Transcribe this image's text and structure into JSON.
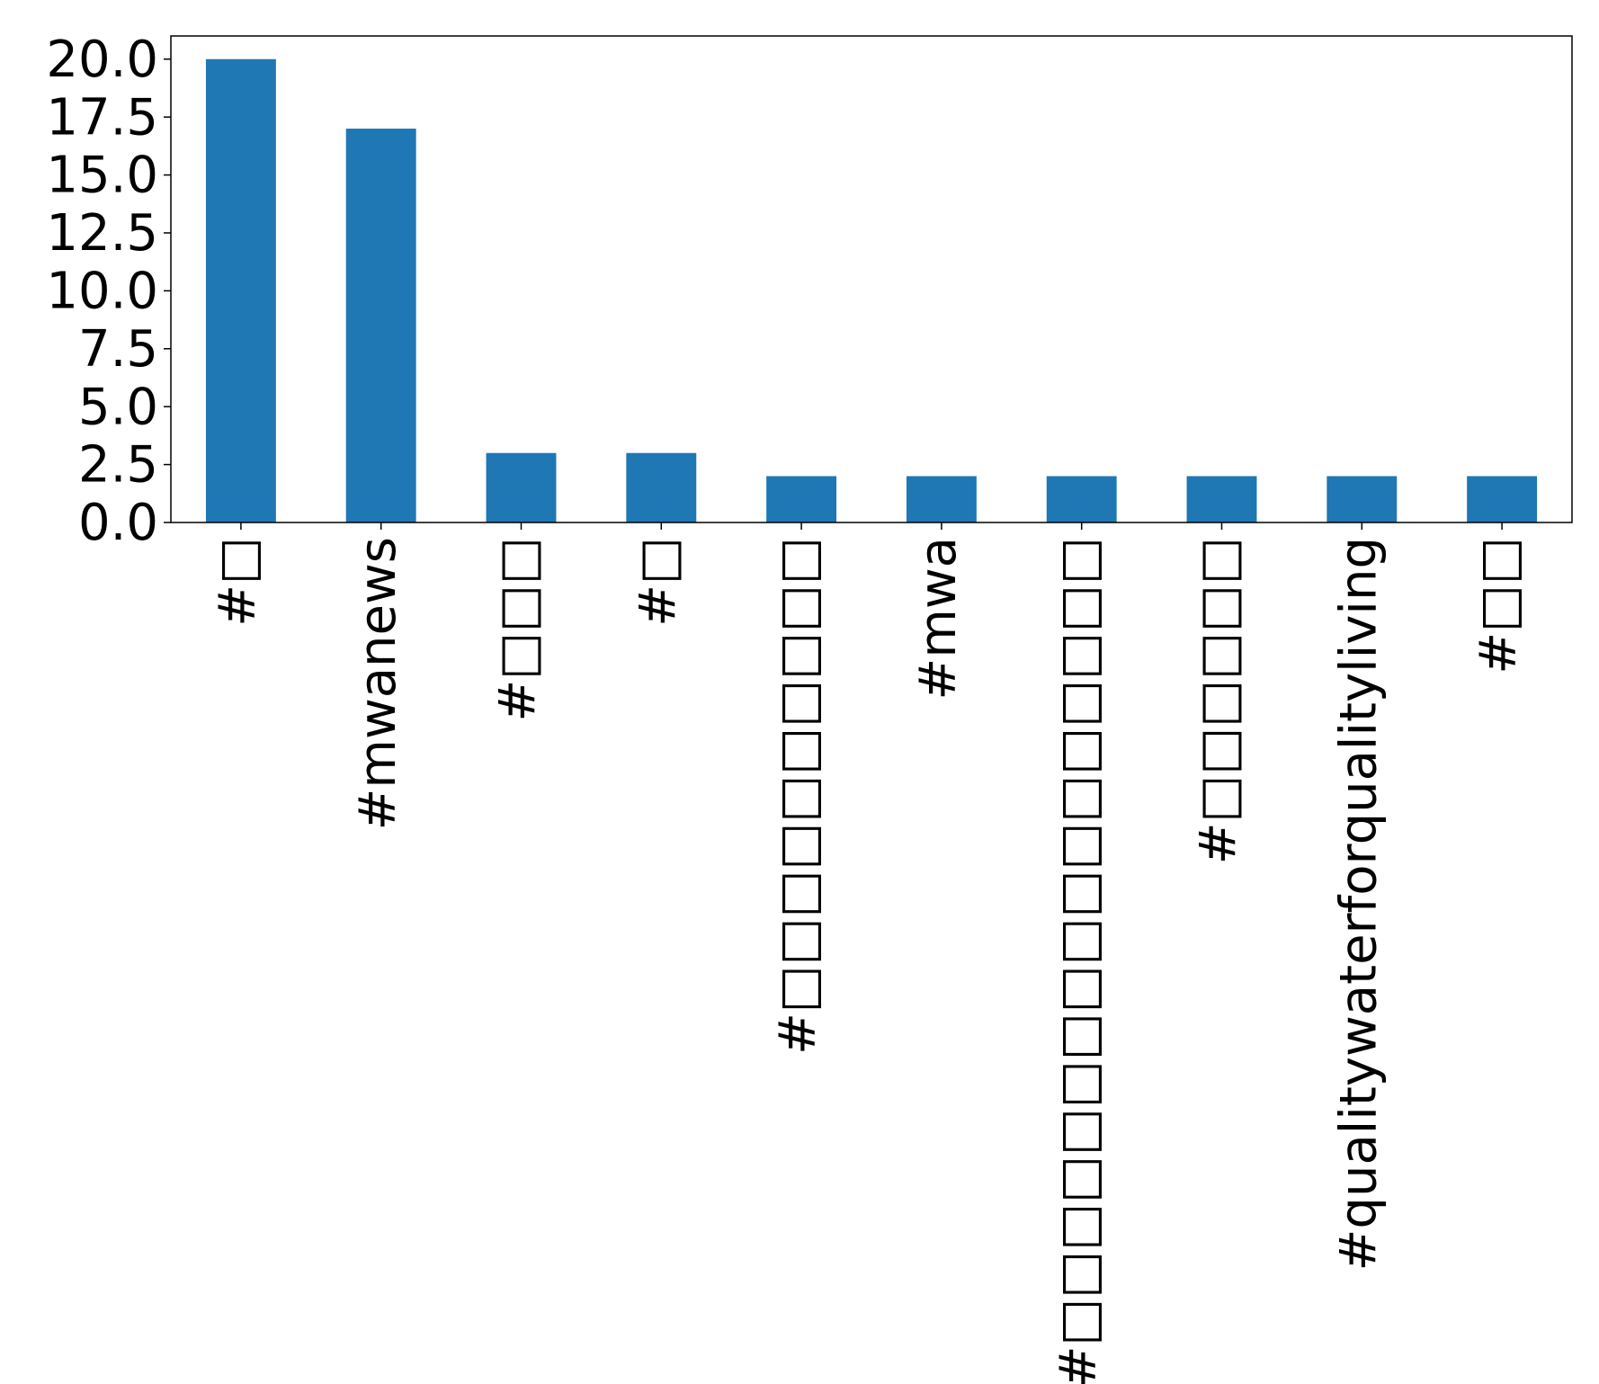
{
  "chart_data": {
    "type": "bar",
    "categories": [
      "#□",
      "#mwanews",
      "#□□□",
      "#□",
      "#□□□□□□□□□□",
      "#mwa",
      "#□□□□□□□□□□□□□□□□□",
      "#□□□□□□",
      "#qualitywaterforqualityliving",
      "#□□"
    ],
    "values": [
      20,
      17,
      3,
      3,
      2,
      2,
      2,
      2,
      2,
      2
    ],
    "color": "#1f77b4",
    "ylim": [
      0,
      21
    ],
    "yticks": [
      {
        "value": 0,
        "label": "0.0"
      },
      {
        "value": 2.5,
        "label": "2.5"
      },
      {
        "value": 5,
        "label": "5.0"
      },
      {
        "value": 7.5,
        "label": "7.5"
      },
      {
        "value": 10,
        "label": "10.0"
      },
      {
        "value": 12.5,
        "label": "12.5"
      },
      {
        "value": 15,
        "label": "15.0"
      },
      {
        "value": 17.5,
        "label": "17.5"
      },
      {
        "value": 20,
        "label": "20.0"
      }
    ],
    "grid": false
  }
}
